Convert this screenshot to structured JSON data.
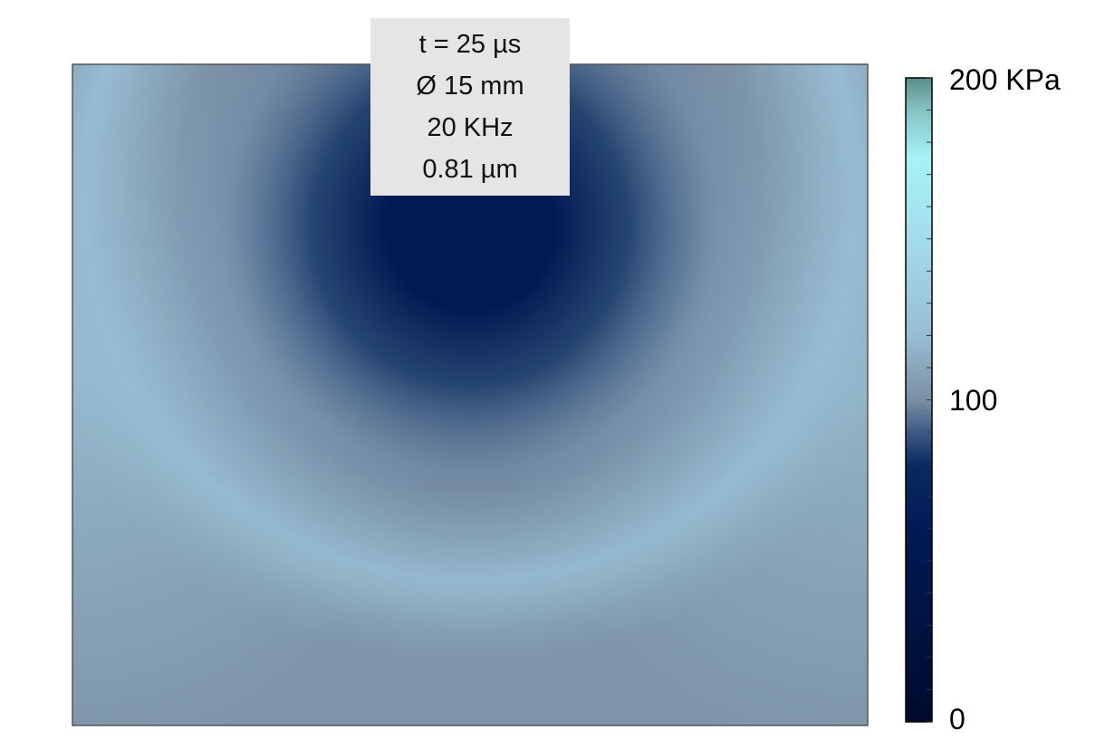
{
  "chart_data": {
    "type": "heatmap",
    "title": "",
    "xlabel": "",
    "ylabel": "",
    "annotation": [
      "t = 25 µs",
      "Ø 15 mm",
      "20 KHz",
      "0.81 µm"
    ],
    "colorbar": {
      "min": 0,
      "max": 200,
      "unit": "KPa",
      "tick_labels": [
        {
          "value": 200,
          "text": "200 KPa"
        },
        {
          "value": 100,
          "text": "100"
        },
        {
          "value": 0,
          "text": "0"
        }
      ],
      "minor_tick_count": 20,
      "colorscale": [
        {
          "value": 0,
          "color": "#000b2e"
        },
        {
          "value": 60,
          "color": "#001a55"
        },
        {
          "value": 80,
          "color": "#0c2a62"
        },
        {
          "value": 90,
          "color": "#3e5a83"
        },
        {
          "value": 100,
          "color": "#7b8fa6"
        },
        {
          "value": 120,
          "color": "#98bdd2"
        },
        {
          "value": 150,
          "color": "#a4dcec"
        },
        {
          "value": 175,
          "color": "#a6f3f5"
        },
        {
          "value": 190,
          "color": "#85c2c3"
        },
        {
          "value": 200,
          "color": "#5b8e88"
        }
      ]
    },
    "field": {
      "description_levels": {
        "center_low": 62,
        "background": 102,
        "ring_high": 120
      }
    }
  }
}
